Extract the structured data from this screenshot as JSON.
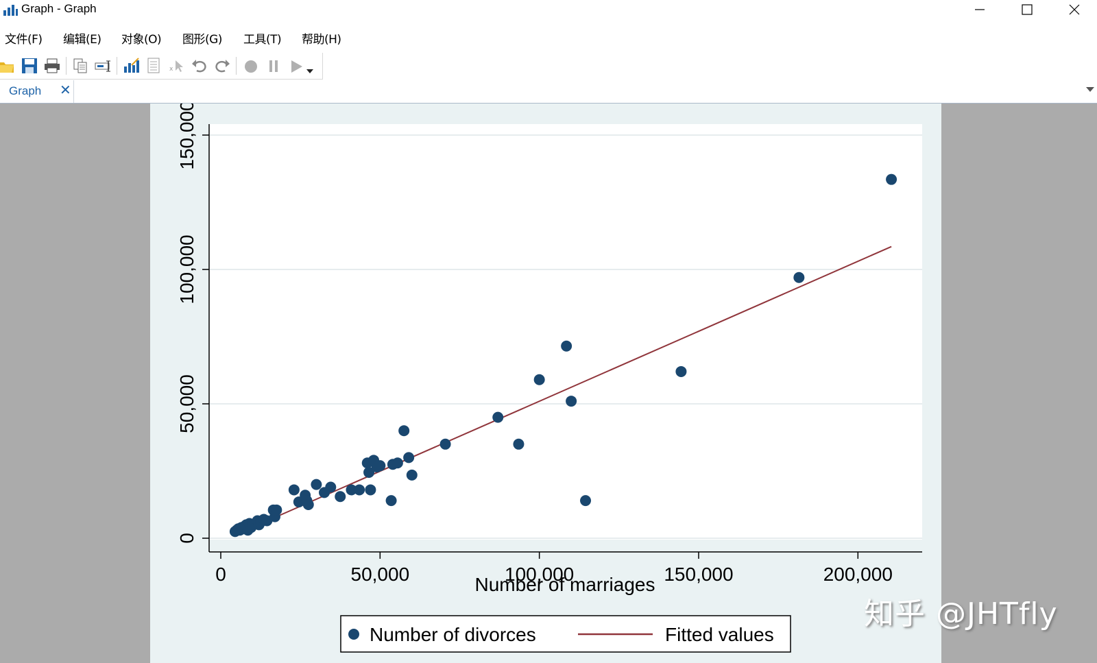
{
  "window": {
    "title": "Graph - Graph",
    "controls": {
      "minimize": "minimize-icon",
      "maximize": "maximize-icon",
      "close": "close-icon"
    }
  },
  "menu": [
    {
      "label": "文件(F)"
    },
    {
      "label": "编辑(E)"
    },
    {
      "label": "对象(O)"
    },
    {
      "label": "图形(G)"
    },
    {
      "label": "工具(T)"
    },
    {
      "label": "帮助(H)"
    }
  ],
  "toolbar": {
    "icons": [
      "open-icon",
      "save-icon",
      "print-icon",
      "copy-icon",
      "rename-icon",
      "graph-editor-icon",
      "data-editor-icon",
      "pointer-icon",
      "undo-icon",
      "redo-icon",
      "record-icon",
      "pause-icon",
      "play-icon",
      "dropdown-icon"
    ]
  },
  "tabs": [
    {
      "label": "Graph",
      "close": "✕"
    }
  ],
  "watermark": "知乎 @JHTfly",
  "colors": {
    "marker": "#1a476f",
    "fit_line": "#90353b",
    "graph_bg": "#eaf2f3",
    "plot_bg": "#ffffff",
    "workspace": "#ababab",
    "tab_text": "#1e63a8"
  },
  "chart_data": {
    "type": "scatter",
    "xlabel": "Number of marriages",
    "ylabel": "",
    "xlim": [
      0,
      215000
    ],
    "ylim": [
      0,
      150000
    ],
    "x_ticks": [
      0,
      50000,
      100000,
      150000,
      200000
    ],
    "x_tick_labels": [
      "0",
      "50,000",
      "100,000",
      "150,000",
      "200,000"
    ],
    "y_ticks": [
      0,
      50000,
      100000,
      150000
    ],
    "y_tick_labels": [
      "0",
      "50,000",
      "100,000",
      "150,000"
    ],
    "grid": true,
    "legend_position": "bottom",
    "legend": [
      "Number of divorces",
      "Fitted values"
    ],
    "series": [
      {
        "name": "Number of divorces",
        "kind": "scatter",
        "x": [
          4500,
          5000,
          5500,
          6000,
          6500,
          7000,
          7500,
          8000,
          8500,
          9000,
          9500,
          10000,
          11500,
          12000,
          12500,
          13500,
          14500,
          16500,
          17000,
          17500,
          23000,
          24500,
          26500,
          27000,
          27500,
          30000,
          32500,
          34500,
          37500,
          41000,
          43500,
          46000,
          46500,
          47000,
          48000,
          49000,
          50000,
          53500,
          54000,
          55500,
          57500,
          59000,
          60000,
          70500,
          87000,
          93500,
          100000,
          108500,
          110000,
          114500,
          144500,
          181500,
          210500
        ],
        "y": [
          2500,
          3000,
          3500,
          3000,
          4000,
          3500,
          4500,
          5000,
          3000,
          5500,
          4000,
          5000,
          6500,
          5000,
          6000,
          7000,
          6500,
          10500,
          8000,
          10500,
          18000,
          13500,
          16000,
          14000,
          12500,
          20000,
          17000,
          19000,
          15500,
          18000,
          18000,
          28000,
          24500,
          18000,
          29000,
          26500,
          27000,
          14000,
          27500,
          28000,
          40000,
          30000,
          23500,
          35000,
          45000,
          35000,
          59000,
          71500,
          51000,
          14000,
          62000,
          97000,
          133500
        ]
      },
      {
        "name": "Fitted values",
        "kind": "line",
        "x": [
          5000,
          210500
        ],
        "y": [
          1500,
          108500
        ]
      }
    ]
  }
}
